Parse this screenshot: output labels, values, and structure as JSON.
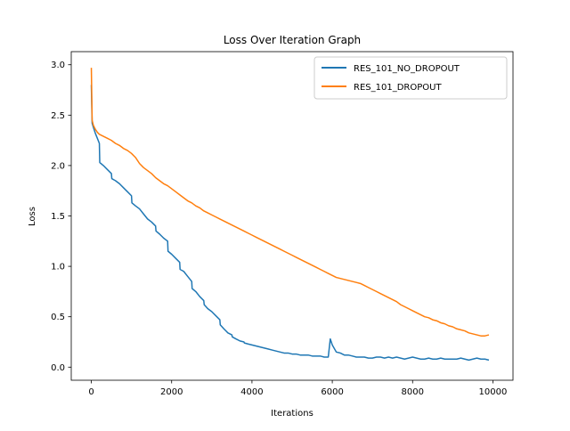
{
  "chart_data": {
    "type": "line",
    "title": "Loss Over Iteration Graph",
    "xlabel": "Iterations",
    "ylabel": "Loss",
    "xlim": [
      -500,
      10500
    ],
    "ylim": [
      -0.13,
      3.13
    ],
    "xticks": [
      0,
      2000,
      4000,
      6000,
      8000,
      10000
    ],
    "xtick_labels": [
      "0",
      "2000",
      "4000",
      "6000",
      "8000",
      "10000"
    ],
    "yticks": [
      0.0,
      0.5,
      1.0,
      1.5,
      2.0,
      2.5,
      3.0
    ],
    "ytick_labels": [
      "0.0",
      "0.5",
      "1.0",
      "1.5",
      "2.0",
      "2.5",
      "3.0"
    ],
    "grid": false,
    "legend_position": "top-right",
    "series": [
      {
        "name": "RES_101_NO_DROPOUT",
        "color": "#1f77b4",
        "x": [
          0,
          20,
          50,
          100,
          150,
          200,
          210,
          300,
          400,
          500,
          510,
          600,
          700,
          800,
          900,
          1000,
          1010,
          1100,
          1200,
          1300,
          1400,
          1500,
          1600,
          1610,
          1700,
          1800,
          1900,
          1910,
          2000,
          2100,
          2200,
          2210,
          2300,
          2400,
          2500,
          2510,
          2600,
          2700,
          2800,
          2810,
          2900,
          3000,
          3100,
          3200,
          3210,
          3300,
          3400,
          3500,
          3510,
          3600,
          3700,
          3800,
          3810,
          3900,
          4000,
          4100,
          4200,
          4300,
          4400,
          4500,
          4600,
          4700,
          4800,
          4900,
          5000,
          5100,
          5200,
          5300,
          5400,
          5500,
          5600,
          5700,
          5800,
          5900,
          5950,
          6000,
          6100,
          6200,
          6300,
          6400,
          6500,
          6600,
          6700,
          6800,
          6900,
          7000,
          7100,
          7200,
          7300,
          7400,
          7500,
          7600,
          7700,
          7800,
          7900,
          8000,
          8100,
          8200,
          8300,
          8400,
          8500,
          8600,
          8700,
          8800,
          8900,
          9000,
          9100,
          9200,
          9300,
          9400,
          9500,
          9600,
          9700,
          9800,
          9900
        ],
        "y": [
          2.8,
          2.42,
          2.38,
          2.32,
          2.27,
          2.22,
          2.03,
          2.0,
          1.96,
          1.92,
          1.87,
          1.85,
          1.82,
          1.78,
          1.74,
          1.7,
          1.63,
          1.6,
          1.57,
          1.52,
          1.47,
          1.44,
          1.4,
          1.35,
          1.32,
          1.28,
          1.25,
          1.15,
          1.12,
          1.08,
          1.04,
          0.97,
          0.95,
          0.9,
          0.85,
          0.78,
          0.75,
          0.7,
          0.66,
          0.62,
          0.58,
          0.55,
          0.51,
          0.47,
          0.42,
          0.38,
          0.34,
          0.32,
          0.3,
          0.28,
          0.26,
          0.25,
          0.24,
          0.23,
          0.22,
          0.21,
          0.2,
          0.19,
          0.18,
          0.17,
          0.16,
          0.15,
          0.14,
          0.14,
          0.13,
          0.13,
          0.12,
          0.12,
          0.12,
          0.11,
          0.11,
          0.11,
          0.1,
          0.1,
          0.28,
          0.22,
          0.15,
          0.14,
          0.12,
          0.12,
          0.11,
          0.1,
          0.1,
          0.1,
          0.09,
          0.09,
          0.1,
          0.1,
          0.09,
          0.1,
          0.09,
          0.1,
          0.09,
          0.08,
          0.09,
          0.1,
          0.09,
          0.08,
          0.08,
          0.09,
          0.08,
          0.08,
          0.09,
          0.08,
          0.08,
          0.08,
          0.08,
          0.09,
          0.08,
          0.07,
          0.08,
          0.09,
          0.08,
          0.08,
          0.07
        ]
      },
      {
        "name": "RES_101_DROPOUT",
        "color": "#ff7f0e",
        "x": [
          0,
          20,
          50,
          100,
          150,
          200,
          300,
          400,
          500,
          600,
          700,
          800,
          900,
          1000,
          1100,
          1200,
          1300,
          1400,
          1500,
          1600,
          1700,
          1800,
          1900,
          2000,
          2100,
          2200,
          2300,
          2400,
          2500,
          2600,
          2700,
          2800,
          2900,
          3000,
          3100,
          3200,
          3300,
          3400,
          3500,
          3600,
          3700,
          3800,
          3900,
          4000,
          4100,
          4200,
          4300,
          4400,
          4500,
          4600,
          4700,
          4800,
          4900,
          5000,
          5100,
          5200,
          5300,
          5400,
          5500,
          5600,
          5700,
          5800,
          5900,
          6000,
          6100,
          6200,
          6300,
          6400,
          6500,
          6600,
          6700,
          6800,
          6900,
          7000,
          7100,
          7200,
          7300,
          7400,
          7500,
          7600,
          7700,
          7800,
          7900,
          8000,
          8100,
          8200,
          8300,
          8400,
          8500,
          8600,
          8700,
          8800,
          8900,
          9000,
          9100,
          9200,
          9300,
          9400,
          9500,
          9600,
          9700,
          9800,
          9900
        ],
        "y": [
          2.97,
          2.45,
          2.4,
          2.36,
          2.33,
          2.31,
          2.29,
          2.27,
          2.25,
          2.22,
          2.2,
          2.17,
          2.15,
          2.12,
          2.08,
          2.02,
          1.98,
          1.95,
          1.92,
          1.88,
          1.85,
          1.82,
          1.8,
          1.77,
          1.74,
          1.71,
          1.68,
          1.65,
          1.63,
          1.6,
          1.58,
          1.55,
          1.53,
          1.51,
          1.49,
          1.47,
          1.45,
          1.43,
          1.41,
          1.39,
          1.37,
          1.35,
          1.33,
          1.31,
          1.29,
          1.27,
          1.25,
          1.23,
          1.21,
          1.19,
          1.17,
          1.15,
          1.13,
          1.11,
          1.09,
          1.07,
          1.05,
          1.03,
          1.01,
          0.99,
          0.97,
          0.95,
          0.93,
          0.91,
          0.89,
          0.88,
          0.87,
          0.86,
          0.85,
          0.84,
          0.83,
          0.81,
          0.79,
          0.77,
          0.75,
          0.73,
          0.71,
          0.69,
          0.67,
          0.65,
          0.62,
          0.6,
          0.58,
          0.56,
          0.54,
          0.52,
          0.5,
          0.49,
          0.47,
          0.46,
          0.44,
          0.43,
          0.41,
          0.4,
          0.38,
          0.37,
          0.36,
          0.34,
          0.33,
          0.32,
          0.31,
          0.31,
          0.32
        ]
      }
    ]
  }
}
